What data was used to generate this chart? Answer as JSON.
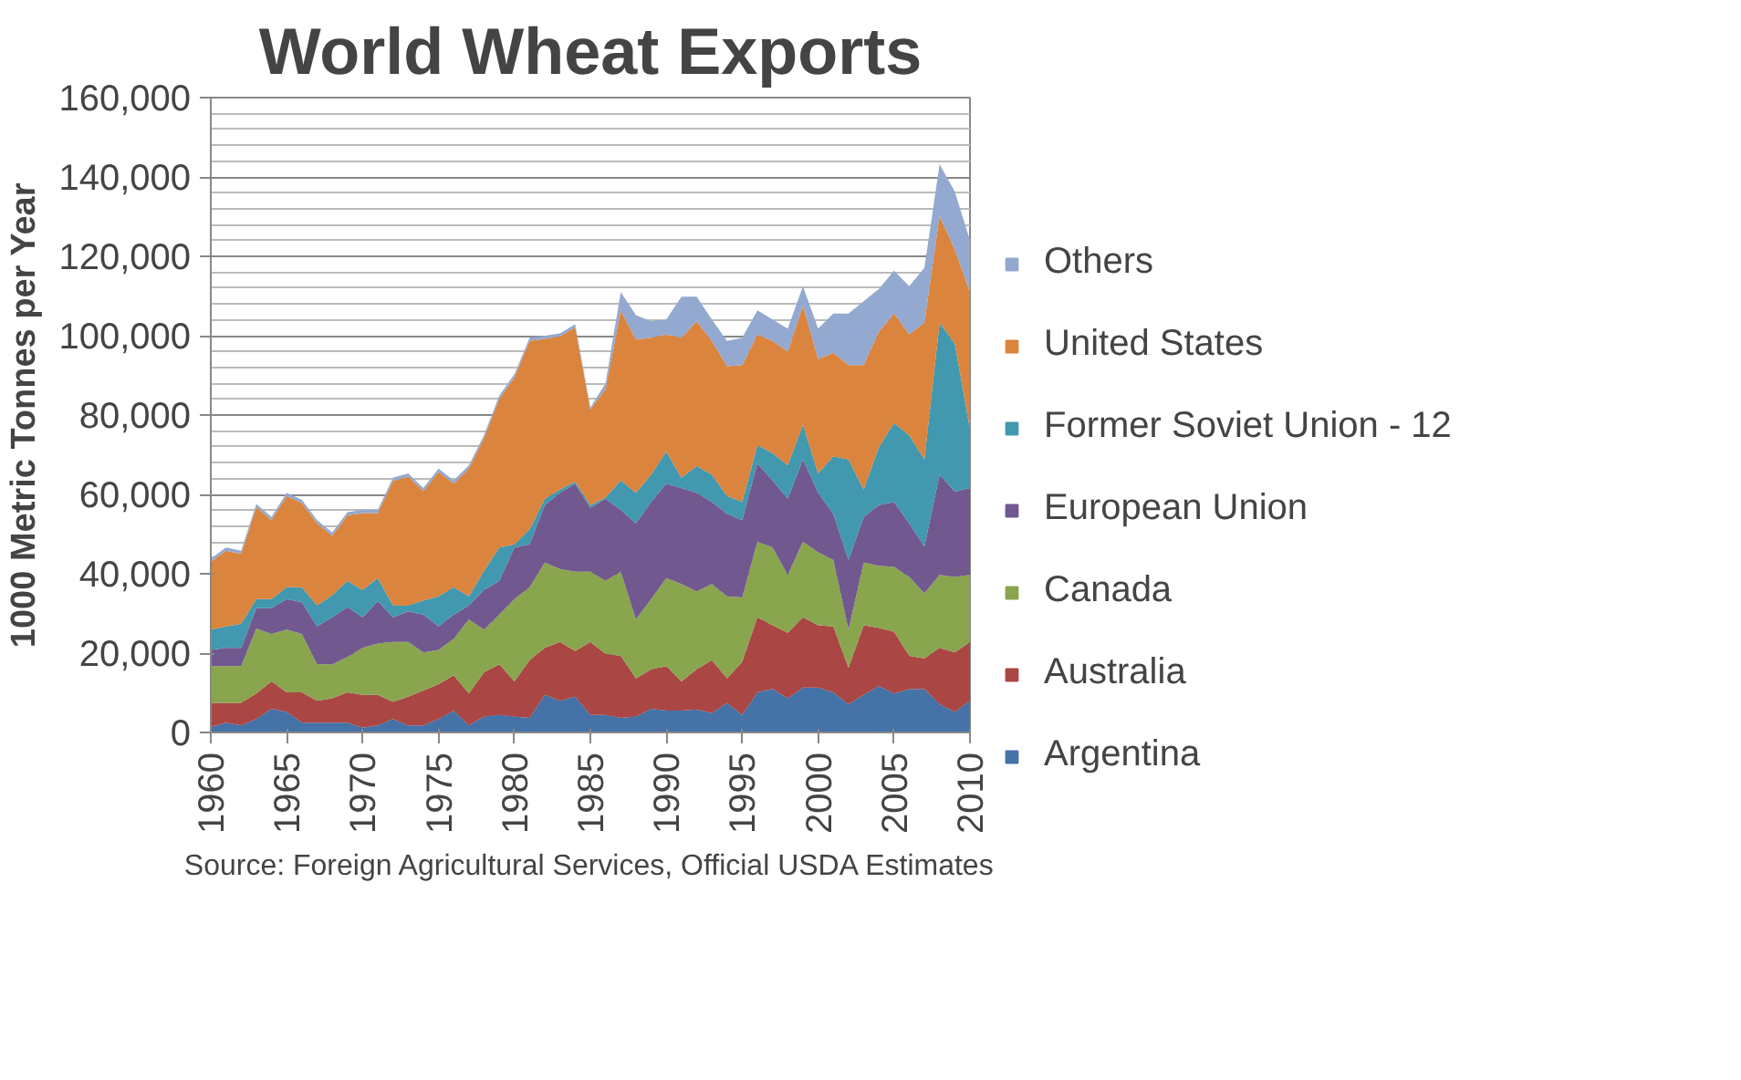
{
  "chart_data": {
    "type": "area",
    "stacked": true,
    "title": "World Wheat Exports",
    "ylabel": "1000 Metric Tonnes per Year",
    "annotations": [
      "Source: Foreign Agricultural Services, Official USDA Estimates"
    ],
    "x": [
      1960,
      1961,
      1962,
      1963,
      1964,
      1965,
      1966,
      1967,
      1968,
      1969,
      1970,
      1971,
      1972,
      1973,
      1974,
      1975,
      1976,
      1977,
      1978,
      1979,
      1980,
      1981,
      1982,
      1983,
      1984,
      1985,
      1986,
      1987,
      1988,
      1989,
      1990,
      1991,
      1992,
      1993,
      1994,
      1995,
      1996,
      1997,
      1998,
      1999,
      2000,
      2001,
      2002,
      2003,
      2004,
      2005,
      2006,
      2007,
      2008,
      2009,
      2010
    ],
    "xlim": [
      1960,
      2010
    ],
    "xticks": [
      1960,
      1965,
      1970,
      1975,
      1980,
      1985,
      1990,
      1995,
      2000,
      2005,
      2010
    ],
    "ylim": [
      0,
      160000
    ],
    "yticks": [
      {
        "value": 0,
        "label": "0"
      },
      {
        "value": 20000,
        "label": "20,000"
      },
      {
        "value": 40000,
        "label": "40,000"
      },
      {
        "value": 60000,
        "label": "60,000"
      },
      {
        "value": 80000,
        "label": "80,000"
      },
      {
        "value": 100000,
        "label": "100,000"
      },
      {
        "value": 120000,
        "label": "120,000"
      },
      {
        "value": 140000,
        "label": "140,000"
      },
      {
        "value": 160000,
        "label": "160,000"
      }
    ],
    "grid": "y",
    "legend": "right",
    "series": [
      {
        "name": "Argentina",
        "color": "#4572a7",
        "values": [
          1400,
          2500,
          1800,
          3400,
          6000,
          5200,
          2500,
          2500,
          2500,
          2500,
          1200,
          1800,
          3400,
          1800,
          1800,
          3400,
          5500,
          1800,
          4000,
          4400,
          4000,
          3700,
          9500,
          8000,
          9000,
          4400,
          4400,
          3700,
          4000,
          6000,
          5500,
          5500,
          5800,
          4900,
          7500,
          4400,
          10100,
          11000,
          8600,
          11300,
          11300,
          10100,
          7100,
          9500,
          11700,
          9800,
          10900,
          11000,
          7100,
          5200,
          8000
        ]
      },
      {
        "name": "Australia",
        "color": "#aa4643",
        "values": [
          6100,
          5000,
          5700,
          6400,
          6900,
          4900,
          7600,
          5500,
          6100,
          7600,
          8300,
          7700,
          4300,
          7200,
          8800,
          8700,
          8900,
          8000,
          11200,
          12800,
          8900,
          14500,
          11800,
          14800,
          11500,
          18400,
          15400,
          15600,
          9600,
          9900,
          11200,
          7400,
          10100,
          13300,
          6100,
          13400,
          18900,
          16000,
          16500,
          17700,
          15700,
          16600,
          9200,
          17500,
          14700,
          15600,
          8400,
          7700,
          14200,
          15000,
          14800
        ]
      },
      {
        "name": "Canada",
        "color": "#89a54e",
        "values": [
          9200,
          9200,
          9200,
          16400,
          11900,
          15800,
          14700,
          9200,
          8600,
          8900,
          11800,
          12900,
          15100,
          13800,
          9600,
          8700,
          9200,
          18700,
          10700,
          12500,
          20700,
          18400,
          21500,
          18400,
          20000,
          17700,
          18400,
          21200,
          14900,
          17700,
          22200,
          24500,
          19700,
          19200,
          20700,
          16200,
          19100,
          19600,
          14600,
          19100,
          18400,
          16800,
          9600,
          15800,
          15600,
          16300,
          19900,
          16400,
          18400,
          19000,
          16900
        ]
      },
      {
        "name": "European Union",
        "color": "#71588f",
        "values": [
          4100,
          4600,
          4600,
          5100,
          6500,
          7700,
          8000,
          9500,
          11800,
          12600,
          7700,
          10700,
          6200,
          7700,
          9500,
          5900,
          6100,
          3500,
          10000,
          8500,
          13000,
          10800,
          14500,
          19200,
          22200,
          16100,
          20700,
          15600,
          24200,
          24500,
          23800,
          24200,
          24800,
          20700,
          20800,
          19500,
          19700,
          16900,
          19200,
          20700,
          15000,
          11600,
          17600,
          11500,
          15300,
          16400,
          13500,
          11800,
          25300,
          21500,
          21900
        ]
      },
      {
        "name": "Former Soviet Union - 12",
        "color": "#4198af",
        "values": [
          5100,
          5400,
          6100,
          2300,
          2300,
          3000,
          3800,
          5300,
          5600,
          6600,
          6900,
          5800,
          3000,
          1500,
          3600,
          7600,
          6900,
          2300,
          4900,
          8400,
          800,
          3800,
          1600,
          800,
          500,
          700,
          300,
          7400,
          7700,
          6900,
          8100,
          2600,
          6700,
          6900,
          4500,
          4600,
          4600,
          6900,
          8400,
          8800,
          4900,
          14500,
          25300,
          6900,
          14600,
          19900,
          22200,
          21900,
          38300,
          37300,
          14900
        ]
      },
      {
        "name": "United States",
        "color": "#db843d",
        "values": [
          17100,
          19100,
          17600,
          23200,
          19900,
          23000,
          21200,
          20700,
          15000,
          16500,
          19400,
          16400,
          31400,
          32500,
          27500,
          31400,
          26100,
          32200,
          33400,
          37500,
          42100,
          47500,
          40300,
          38600,
          38900,
          24100,
          27300,
          42900,
          38600,
          34500,
          29500,
          35300,
          36500,
          33700,
          32700,
          34500,
          27900,
          28300,
          28700,
          30000,
          28800,
          26100,
          23800,
          31400,
          29100,
          27600,
          25400,
          34500,
          26900,
          23700,
          34500
        ]
      },
      {
        "name": "Others",
        "color": "#93a9cf",
        "values": [
          800,
          800,
          800,
          800,
          800,
          800,
          800,
          800,
          800,
          800,
          800,
          800,
          800,
          800,
          800,
          800,
          800,
          800,
          800,
          800,
          800,
          800,
          800,
          800,
          800,
          500,
          1500,
          4600,
          6200,
          4100,
          3800,
          10300,
          6200,
          5400,
          6400,
          6900,
          6100,
          5400,
          5800,
          4900,
          7700,
          9900,
          13000,
          16100,
          10800,
          10800,
          12200,
          13800,
          13000,
          14600,
          13000
        ]
      }
    ]
  }
}
